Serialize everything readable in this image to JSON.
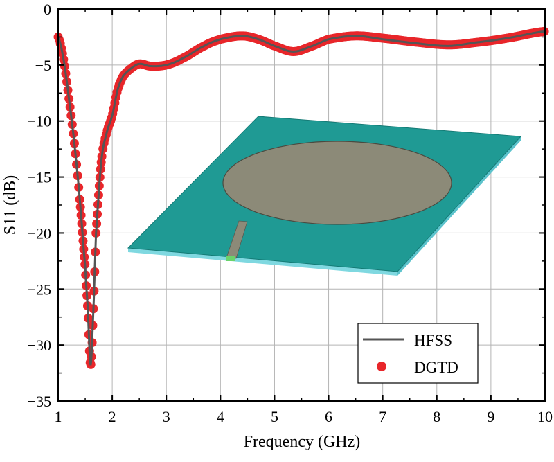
{
  "chart_data": {
    "type": "line",
    "title": "",
    "xlabel": "Frequency (GHz)",
    "ylabel": "S11 (dB)",
    "xlim": [
      1,
      10
    ],
    "ylim": [
      -35,
      0
    ],
    "xticks": [
      "1",
      "2",
      "3",
      "4",
      "5",
      "6",
      "7",
      "8",
      "9",
      "10"
    ],
    "yticks": [
      "0",
      "-5",
      "-10",
      "-15",
      "-20",
      "-25",
      "-30",
      "-35"
    ],
    "grid": true,
    "legend_position": "bottom-right",
    "series": [
      {
        "name": "HFSS",
        "style": "line",
        "color": "#555555",
        "x": [
          1,
          1.1,
          1.2,
          1.3,
          1.4,
          1.5,
          1.55,
          1.6,
          1.65,
          1.7,
          1.8,
          1.9,
          2.0,
          2.1,
          2.2,
          2.35,
          2.5,
          2.7,
          3.0,
          3.3,
          3.7,
          4.0,
          4.4,
          4.7,
          5.0,
          5.35,
          5.7,
          6.0,
          6.5,
          7.0,
          7.5,
          8.2,
          8.7,
          9.3,
          10
        ],
        "y": [
          -2.5,
          -4.5,
          -8,
          -12,
          -17,
          -23,
          -27,
          -31.8,
          -27,
          -20,
          -13.5,
          -11,
          -9.5,
          -7.2,
          -6,
          -5.3,
          -4.9,
          -5.1,
          -5.0,
          -4.4,
          -3.3,
          -2.7,
          -2.4,
          -2.7,
          -3.3,
          -3.8,
          -3.3,
          -2.7,
          -2.4,
          -2.7,
          -3.0,
          -3.3,
          -3.0,
          -2.6,
          -2.0
        ]
      },
      {
        "name": "DGTD",
        "style": "marker",
        "color": "#e8262a",
        "x": [
          1,
          1.1,
          1.2,
          1.3,
          1.4,
          1.5,
          1.55,
          1.6,
          1.65,
          1.7,
          1.8,
          1.9,
          2.0,
          2.1,
          2.2,
          2.35,
          2.5,
          2.7,
          3.0,
          3.3,
          3.7,
          4.0,
          4.4,
          4.7,
          5.0,
          5.35,
          5.7,
          6.0,
          6.5,
          7.0,
          7.5,
          8.2,
          8.7,
          9.3,
          10
        ],
        "y": [
          -2.5,
          -4.5,
          -8,
          -12,
          -17,
          -23,
          -27,
          -31.8,
          -27,
          -20,
          -13.5,
          -11,
          -9.5,
          -7.2,
          -6,
          -5.3,
          -4.9,
          -5.1,
          -5.0,
          -4.4,
          -3.3,
          -2.7,
          -2.4,
          -2.7,
          -3.3,
          -3.8,
          -3.3,
          -2.7,
          -2.4,
          -2.6,
          -2.9,
          -3.2,
          -3.0,
          -2.6,
          -2.0
        ]
      }
    ],
    "inset": "patch-antenna-3d-model",
    "colors": {
      "substrate_top": "#1f9a94",
      "substrate_edge": "#7fd8e0",
      "patch": "#8c8a78",
      "port": "#6bd36b"
    }
  }
}
